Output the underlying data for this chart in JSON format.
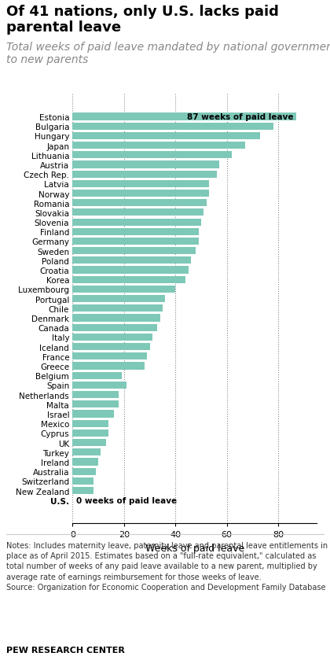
{
  "title": "Of 41 nations, only U.S. lacks paid parental leave",
  "subtitle": "Total weeks of paid leave mandated by national government\nto new parents",
  "xlabel": "Weeks of paid leave",
  "bar_color": "#7ec8b8",
  "us_bar_color": "#f5e6c8",
  "title_fontsize": 13,
  "subtitle_fontsize": 10,
  "countries": [
    "Estonia",
    "Bulgaria",
    "Hungary",
    "Japan",
    "Lithuania",
    "Austria",
    "Czech Rep.",
    "Latvia",
    "Norway",
    "Romania",
    "Slovakia",
    "Slovenia",
    "Finland",
    "Germany",
    "Sweden",
    "Poland",
    "Croatia",
    "Korea",
    "Luxembourg",
    "Portugal",
    "Chile",
    "Denmark",
    "Canada",
    "Italy",
    "Iceland",
    "France",
    "Greece",
    "Belgium",
    "Spain",
    "Netherlands",
    "Malta",
    "Israel",
    "Mexico",
    "Cyprus",
    "UK",
    "Turkey",
    "Ireland",
    "Australia",
    "Switzerland",
    "New Zealand",
    "U.S."
  ],
  "values": [
    87,
    78,
    73,
    67,
    62,
    57,
    56,
    53,
    53,
    52,
    51,
    50,
    49,
    49,
    48,
    46,
    45,
    44,
    40,
    36,
    35,
    34,
    33,
    31,
    30,
    29,
    28,
    19,
    21,
    18,
    18,
    16,
    14,
    14,
    13,
    11,
    10,
    9,
    8,
    8,
    0
  ],
  "notes": "Notes: Includes maternity leave, paternity leave and parental leave entitlements in\nplace as of April 2015. Estimates based on a \"full-rate equivalent,\" calculated as\ntotal number of weeks of any paid leave available to a new parent, multiplied by\naverage rate of earnings reimbursement for those weeks of leave.\nSource: Organization for Economic Cooperation and Development Family Database",
  "footer": "PEW RESEARCH CENTER",
  "xticks": [
    0,
    20,
    40,
    60,
    80
  ],
  "xlim": [
    0,
    95
  ],
  "top_annotation": "87 weeks of paid leave",
  "bottom_annotation": "0 weeks of paid leave"
}
